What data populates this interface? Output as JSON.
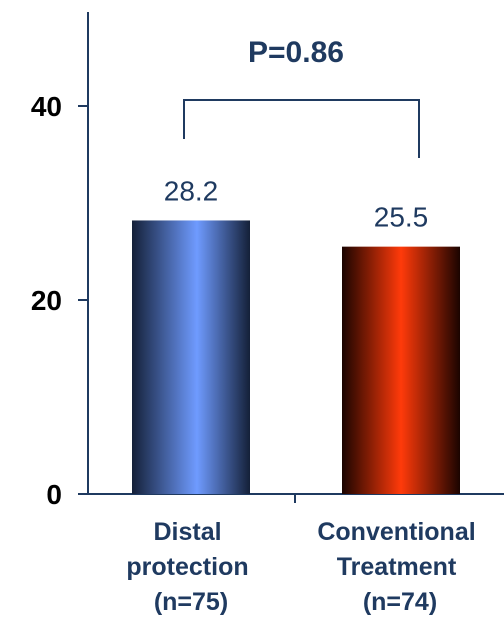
{
  "chart_data": {
    "type": "bar",
    "categories": [
      [
        "Distal",
        "protection",
        "(n=75)"
      ],
      [
        "Conventional",
        "Treatment",
        "(n=74)"
      ]
    ],
    "values": [
      28.2,
      25.5
    ],
    "data_labels": [
      "28.2",
      "25.5"
    ],
    "yticks": [
      0,
      20,
      40
    ],
    "ytick_labels": [
      "0",
      "20",
      "40"
    ],
    "ylim": [
      0,
      50
    ],
    "grid": false,
    "annotation": "P=0.86",
    "colors": {
      "bar1_light": "#6f9bff",
      "bar1_dark": "#142038",
      "bar2_light": "#ff3a0a",
      "bar2_dark": "#1a0400",
      "text": "#1f3a60",
      "axis": "#1f3a60"
    }
  }
}
